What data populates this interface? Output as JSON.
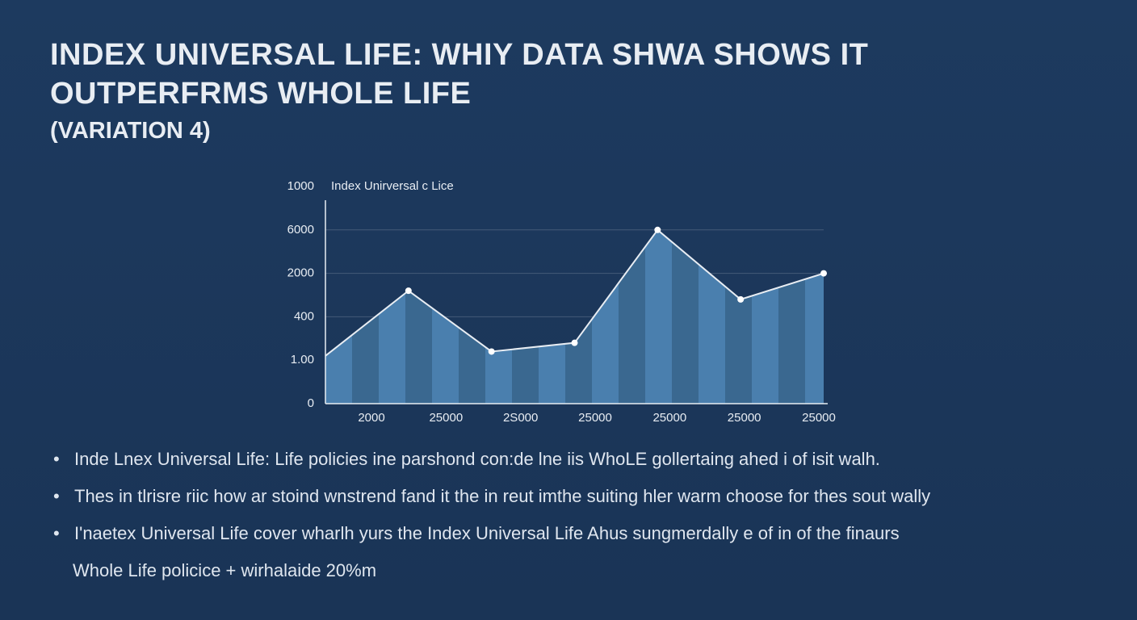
{
  "title_lines": [
    "INDEX UNIVERSAL LIFE: WHIY   DATA SHWA SHOWS IT",
    "OUTPERFRMS WHOLE LIFE"
  ],
  "subtitle": "(VARIATION 4)",
  "chart_data": {
    "type": "area",
    "categories": [
      "2000",
      "25000",
      "2S000",
      "25000",
      "25000",
      "25000",
      "25000"
    ],
    "series": [
      {
        "name": "Index Unirversal c Lice",
        "color": "#3f6f9c",
        "values": [
          1.1,
          2.6,
          1.2,
          1.4,
          4.0,
          2.4,
          3.0
        ]
      }
    ],
    "ylim": [
      0,
      5
    ],
    "yticks": [
      0,
      {
        "value": 1,
        "label": "1.00"
      },
      {
        "value": 2,
        "label": "400"
      },
      {
        "value": 3,
        "label": "2000"
      },
      {
        "value": 4,
        "label": "6000"
      },
      {
        "value": 5,
        "label": "1000"
      }
    ],
    "grid": true
  },
  "bullets": [
    "Inde Lnex Universal Life: Life policies ine parshond con:de lne iis WhoLE gollertaing ahed i of isit walh.",
    "Thes in tlrisre riic how ar stoind wnstrend fand it the in reut imthe suiting hler warm choose for thes sout wally",
    "I'naetex Universal Life cover wharlh yurs the Index Universal Life Ahus sungmerdally e of in of the finaurs"
  ],
  "bullet_continuation": "Whole Life policice + wirhalaide 20%m"
}
